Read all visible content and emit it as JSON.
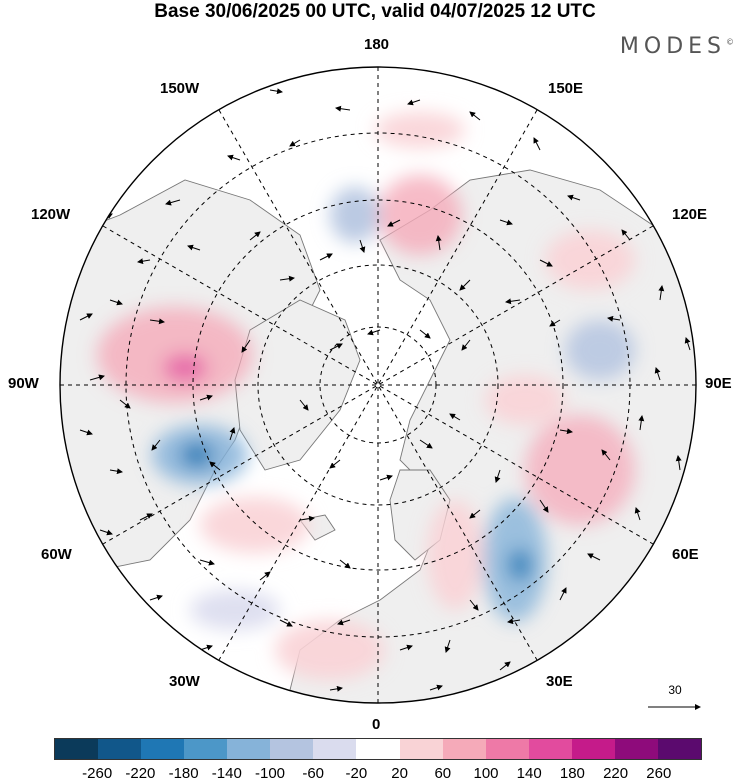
{
  "title": "Base 30/06/2025 00 UTC, valid 04/07/2025 12 UTC",
  "brand": "MODES",
  "brand_mark": "©",
  "longitude_labels": {
    "n180": "180",
    "w150": "150W",
    "e150": "150E",
    "w120": "120W",
    "e120": "120E",
    "w90": "90W",
    "e90": "90E",
    "w60": "60W",
    "e60": "60E",
    "w30": "30W",
    "e30": "30E",
    "s0": "0"
  },
  "reference_vector": "30",
  "colorbar": {
    "colors": [
      "#0b3a5a",
      "#11578a",
      "#1f77b4",
      "#4c97c8",
      "#86b3d9",
      "#b4c4e0",
      "#dadcee",
      "#ffffff",
      "#f9d3d6",
      "#f5aab9",
      "#ee79a7",
      "#e24b9e",
      "#c51b8a",
      "#8e0b7b",
      "#5b0a6e"
    ],
    "ticks": [
      "-260",
      "-220",
      "-180",
      "-140",
      "-100",
      "-60",
      "-20",
      "20",
      "60",
      "100",
      "140",
      "180",
      "220",
      "260"
    ]
  },
  "colors": {
    "land": "#efefef",
    "ocean": "#ffffff",
    "coast": "#777777",
    "grid": "#000000"
  },
  "chart_data": {
    "type": "heatmap",
    "projection": "north polar stereographic",
    "title": "Base 30/06/2025 00 UTC, valid 04/07/2025 12 UTC",
    "color_levels": [
      -260,
      -220,
      -180,
      -140,
      -100,
      -60,
      -20,
      20,
      60,
      100,
      140,
      180,
      220,
      260
    ],
    "reference_vector": 30
  }
}
